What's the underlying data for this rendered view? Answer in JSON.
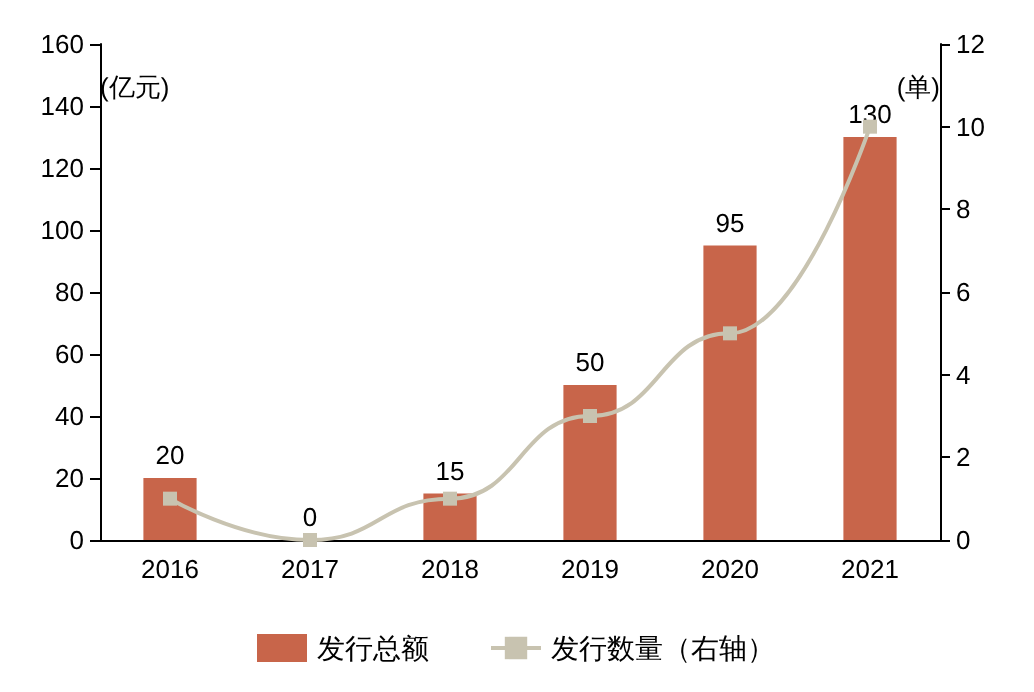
{
  "chart_data": {
    "type": "bar",
    "categories": [
      "2016",
      "2017",
      "2018",
      "2019",
      "2020",
      "2021"
    ],
    "ylabel": "(亿元)",
    "y2label": "(单)",
    "ylim": [
      0,
      160
    ],
    "yticks": [
      0,
      20,
      40,
      60,
      80,
      100,
      120,
      140,
      160
    ],
    "y2lim": [
      0,
      12
    ],
    "y2ticks": [
      0,
      2,
      4,
      6,
      8,
      10,
      12
    ],
    "legend": "bottom",
    "grid": false,
    "series": [
      {
        "name": "发行总额",
        "color": "#c8654a",
        "values": [
          20,
          0,
          15,
          50,
          95,
          130
        ],
        "value_labels": [
          "20",
          "0",
          "15",
          "50",
          "95",
          "130"
        ]
      },
      {
        "name": "发行数量（右轴）",
        "type": "line",
        "axis": "y2",
        "color": "#c8c3b0",
        "marker": "square",
        "values": [
          1,
          0,
          1,
          3,
          5,
          10
        ]
      }
    ]
  }
}
